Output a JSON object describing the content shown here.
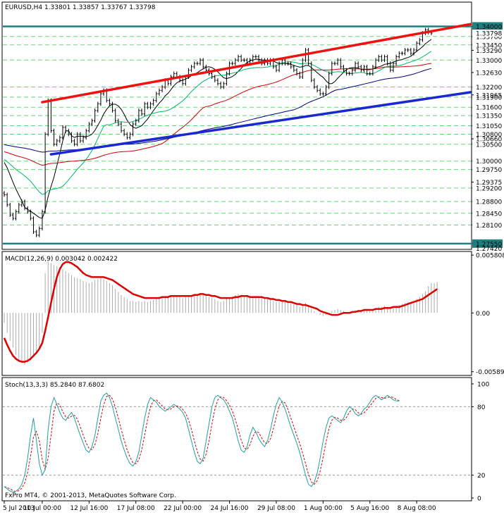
{
  "chart_data": [
    {
      "type": "line",
      "panel": "price",
      "title": "EURUSD,H4  1.33801 1.33857 1.33767 1.33798",
      "ylim": [
        1.274,
        1.347
      ],
      "grid": true,
      "price_levels": [
        "1.34000",
        "1.33700",
        "1.33450",
        "1.33000",
        "1.32200",
        "1.31900",
        "1.31600",
        "1.31350",
        "1.31050",
        "1.30800",
        "1.30500",
        "1.30000",
        "1.29750",
        "1.29200",
        "1.28800",
        "1.28450",
        "1.28100",
        "1.27550"
      ],
      "plain_ticks": [
        "1.33290",
        "1.32630",
        "1.31965",
        "1.30660",
        "1.29375"
      ],
      "highlight_levels": [
        "1.34000",
        "1.27550"
      ],
      "current_price_label": "1.33798",
      "bottom_cut_label": "1.27420",
      "x_labels": [
        "5 Jul 2013",
        "10 Jul 00:00",
        "12 Jul 16:00",
        "17 Jul 08:00",
        "22 Jul 00:00",
        "24 Jul 16:00",
        "29 Jul 08:00",
        "1 Aug 00:00",
        "5 Aug 16:00",
        "8 Aug 08:00"
      ],
      "x_tick_index": [
        0,
        13,
        29,
        45,
        61,
        77,
        93,
        109,
        125,
        141
      ],
      "close_series": [
        1.29,
        1.287,
        1.284,
        1.283,
        1.285,
        1.287,
        1.288,
        1.286,
        1.285,
        1.283,
        1.279,
        1.278,
        1.28,
        1.285,
        1.308,
        1.318,
        1.309,
        1.305,
        1.306,
        1.307,
        1.31,
        1.309,
        1.308,
        1.306,
        1.305,
        1.308,
        1.306,
        1.307,
        1.309,
        1.311,
        1.312,
        1.315,
        1.317,
        1.32,
        1.321,
        1.318,
        1.317,
        1.315,
        1.312,
        1.311,
        1.309,
        1.308,
        1.307,
        1.308,
        1.311,
        1.312,
        1.315,
        1.314,
        1.317,
        1.316,
        1.317,
        1.318,
        1.32,
        1.321,
        1.322,
        1.324,
        1.323,
        1.325,
        1.326,
        1.325,
        1.324,
        1.323,
        1.325,
        1.327,
        1.328,
        1.329,
        1.329,
        1.33,
        1.328,
        1.327,
        1.326,
        1.325,
        1.324,
        1.323,
        1.322,
        1.323,
        1.326,
        1.329,
        1.329,
        1.33,
        1.331,
        1.33,
        1.33,
        1.329,
        1.33,
        1.331,
        1.331,
        1.33,
        1.329,
        1.33,
        1.329,
        1.33,
        1.328,
        1.327,
        1.329,
        1.33,
        1.329,
        1.329,
        1.328,
        1.327,
        1.326,
        1.325,
        1.33,
        1.333,
        1.329,
        1.324,
        1.322,
        1.321,
        1.32,
        1.32,
        1.322,
        1.326,
        1.329,
        1.329,
        1.33,
        1.328,
        1.327,
        1.326,
        1.326,
        1.327,
        1.329,
        1.328,
        1.327,
        1.328,
        1.326,
        1.326,
        1.328,
        1.33,
        1.331,
        1.33,
        1.331,
        1.329,
        1.327,
        1.329,
        1.331,
        1.332,
        1.332,
        1.333,
        1.333,
        1.332,
        1.333,
        1.335,
        1.336,
        1.338,
        1.339,
        1.3382,
        1.338
      ],
      "trendlines": [
        {
          "color": "#ee1111",
          "from": [
            13,
            1.3175
          ],
          "to": [
            152,
            1.3395
          ],
          "extend_right": true
        },
        {
          "color": "#1a28d0",
          "from": [
            16,
            1.302
          ],
          "to": [
            152,
            1.3195
          ],
          "extend_right": true
        }
      ],
      "moving_averages": [
        {
          "color": "#000000",
          "period": 8
        },
        {
          "color": "#00bb66",
          "period": 21
        },
        {
          "color": "#cc0000",
          "period": 55
        },
        {
          "color": "#000080",
          "period": 100
        }
      ]
    },
    {
      "type": "bar",
      "panel": "macd",
      "title": "MACD(12,26,9) 0.003042 0.002422",
      "ylim": [
        -0.0062,
        0.0061
      ],
      "y_ticks": [
        0.005808,
        0.0,
        -0.005895
      ],
      "y_tick_labels": [
        "0.005808",
        "0.00",
        "-0.00589"
      ],
      "main_color": "#aaaaaa",
      "signal_color": "#dd0000",
      "main_series": [
        -0.001,
        -0.002,
        -0.0028,
        -0.0035,
        -0.0042,
        -0.0048,
        -0.005,
        -0.0052,
        -0.005,
        -0.0048,
        -0.0044,
        -0.004,
        -0.0035,
        -0.002,
        0.004,
        0.0052,
        0.005,
        0.0048,
        0.0047,
        0.0046,
        0.0044,
        0.0042,
        0.004,
        0.0038,
        0.0036,
        0.0035,
        0.0034,
        0.0032,
        0.0031,
        0.003,
        0.0031,
        0.0033,
        0.0034,
        0.0035,
        0.0034,
        0.0032,
        0.003,
        0.0028,
        0.0024,
        0.0021,
        0.0018,
        0.0016,
        0.0014,
        0.0012,
        0.0012,
        0.0011,
        0.0012,
        0.0011,
        0.0012,
        0.0011,
        0.0012,
        0.0013,
        0.0014,
        0.0015,
        0.0016,
        0.0017,
        0.0016,
        0.0017,
        0.0018,
        0.0017,
        0.0016,
        0.0015,
        0.0016,
        0.0017,
        0.0018,
        0.0019,
        0.0019,
        0.002,
        0.0018,
        0.0017,
        0.0016,
        0.0015,
        0.0014,
        0.0012,
        0.0011,
        0.0012,
        0.0014,
        0.0016,
        0.0017,
        0.0018,
        0.0019,
        0.0018,
        0.0017,
        0.0016,
        0.0016,
        0.0017,
        0.0017,
        0.0016,
        0.0015,
        0.0015,
        0.0014,
        0.0014,
        0.0012,
        0.0011,
        0.0011,
        0.0012,
        0.0012,
        0.0011,
        0.001,
        0.0009,
        0.0008,
        0.0006,
        0.0008,
        0.001,
        0.0008,
        0.0004,
        0.0002,
        0.0,
        -0.0002,
        -0.0003,
        -0.0002,
        0.0,
        0.0002,
        0.0003,
        0.0004,
        0.0003,
        0.0002,
        0.0001,
        0.0001,
        0.0002,
        0.0003,
        0.0003,
        0.0003,
        0.0004,
        0.0003,
        0.0003,
        0.0004,
        0.0005,
        0.0006,
        0.0006,
        0.0007,
        0.0006,
        0.0005,
        0.0006,
        0.0007,
        0.0008,
        0.0009,
        0.001,
        0.0011,
        0.0011,
        0.0012,
        0.0014,
        0.0016,
        0.0019,
        0.0022,
        0.0027,
        0.003,
        0.003,
        0.0031
      ],
      "signal_series": [
        -0.0025,
        -0.0032,
        -0.0038,
        -0.0043,
        -0.0046,
        -0.0048,
        -0.0049,
        -0.0049,
        -0.0048,
        -0.0046,
        -0.0043,
        -0.004,
        -0.0036,
        -0.003,
        -0.0018,
        -0.0004,
        0.001,
        0.0024,
        0.0036,
        0.0044,
        0.0049,
        0.0051,
        0.0051,
        0.005,
        0.0048,
        0.0046,
        0.0043,
        0.004,
        0.0038,
        0.0037,
        0.0036,
        0.0036,
        0.0036,
        0.0036,
        0.0036,
        0.0035,
        0.0034,
        0.0033,
        0.0031,
        0.0029,
        0.0027,
        0.0025,
        0.0023,
        0.0021,
        0.0019,
        0.0018,
        0.0017,
        0.0016,
        0.0015,
        0.0015,
        0.0015,
        0.0015,
        0.0015,
        0.0015,
        0.0016,
        0.0016,
        0.0016,
        0.0017,
        0.0017,
        0.0017,
        0.0017,
        0.0017,
        0.0017,
        0.0017,
        0.0017,
        0.0018,
        0.0018,
        0.0019,
        0.0019,
        0.0018,
        0.0018,
        0.0017,
        0.0017,
        0.0016,
        0.0015,
        0.0015,
        0.0015,
        0.0015,
        0.0015,
        0.0016,
        0.0016,
        0.0017,
        0.0017,
        0.0017,
        0.0016,
        0.0016,
        0.0016,
        0.0016,
        0.0016,
        0.0015,
        0.0015,
        0.0014,
        0.0014,
        0.0013,
        0.0013,
        0.0012,
        0.0012,
        0.0011,
        0.0011,
        0.001,
        0.0009,
        0.0009,
        0.0008,
        0.0008,
        0.0007,
        0.0006,
        0.0005,
        0.0004,
        0.0002,
        0.0001,
        0.0,
        -0.0001,
        -0.0002,
        -0.0002,
        -0.0002,
        -0.0001,
        0.0,
        0.0,
        0.0,
        0.0001,
        0.0001,
        0.0002,
        0.0002,
        0.0003,
        0.0003,
        0.0003,
        0.0003,
        0.0004,
        0.0004,
        0.0004,
        0.0005,
        0.0005,
        0.0005,
        0.0006,
        0.0006,
        0.0006,
        0.0007,
        0.0008,
        0.0009,
        0.001,
        0.0011,
        0.0012,
        0.0013,
        0.0014,
        0.0016,
        0.0018,
        0.002,
        0.0022,
        0.0024
      ]
    },
    {
      "type": "line",
      "panel": "stochastic",
      "title": "Stoch(13,3,3) 85.2840 87.6802",
      "ylim": [
        0,
        100
      ],
      "y_ticks": [
        100,
        80,
        20,
        0
      ],
      "levels": [
        80,
        20
      ],
      "main_color": "#20a0a0",
      "signal_color": "#dd0000",
      "main_series": [
        10,
        8,
        6,
        5,
        6,
        8,
        12,
        20,
        35,
        55,
        70,
        50,
        30,
        20,
        25,
        60,
        80,
        88,
        82,
        75,
        70,
        68,
        72,
        75,
        70,
        62,
        55,
        48,
        42,
        40,
        45,
        55,
        70,
        85,
        90,
        92,
        88,
        80,
        70,
        60,
        50,
        42,
        35,
        30,
        28,
        32,
        40,
        55,
        70,
        82,
        88,
        86,
        84,
        80,
        78,
        76,
        78,
        80,
        82,
        80,
        78,
        75,
        70,
        60,
        50,
        40,
        32,
        30,
        35,
        50,
        65,
        80,
        88,
        90,
        88,
        86,
        82,
        76,
        70,
        60,
        50,
        42,
        40,
        45,
        55,
        62,
        58,
        52,
        48,
        45,
        50,
        60,
        72,
        82,
        88,
        84,
        78,
        70,
        62,
        55,
        48,
        40,
        30,
        20,
        12,
        10,
        14,
        22,
        35,
        50,
        62,
        70,
        72,
        70,
        68,
        66,
        70,
        76,
        80,
        78,
        74,
        72,
        74,
        78,
        80,
        84,
        88,
        90,
        88,
        86,
        88,
        90,
        88,
        86,
        85,
        85
      ]
    }
  ],
  "footer": "FxPro MT4, © 2001-2013, MetaQuotes Software Corp."
}
